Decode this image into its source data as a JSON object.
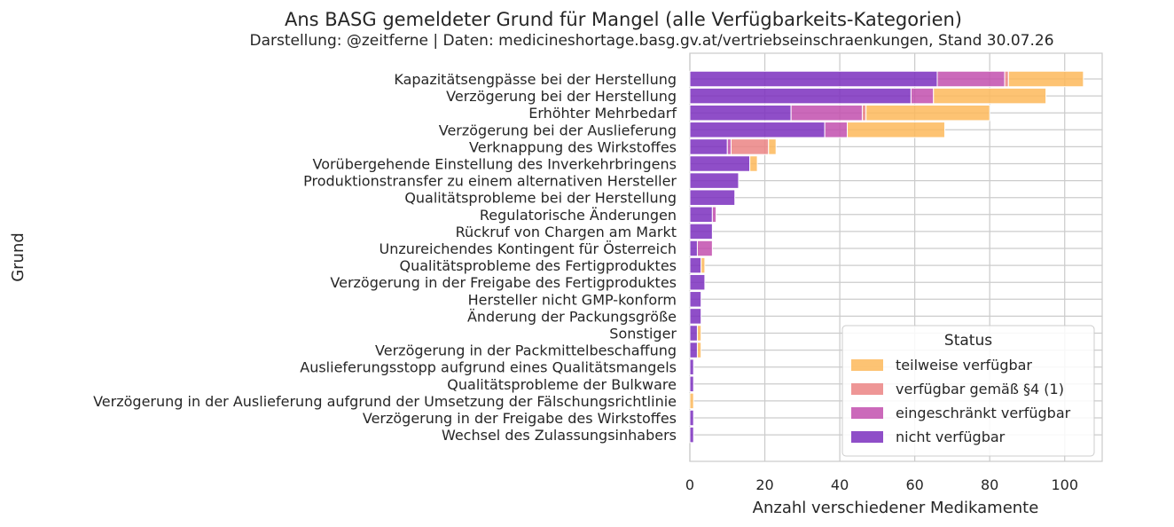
{
  "chart_data": {
    "type": "bar",
    "orientation": "horizontal",
    "stacked": true,
    "title": "Ans BASG gemeldeter Grund für Mangel (alle Verfügbarkeits-Kategorien)",
    "subtitle": "Darstellung: @zeitferne | Daten: medicineshortage.basg.gv.at/vertriebseinschraenkungen, Stand 30.07.26",
    "xlabel": "Anzahl verschiedener Medikamente",
    "ylabel": "Grund",
    "xlim": [
      0,
      110
    ],
    "xticks": [
      0,
      20,
      40,
      60,
      80,
      100
    ],
    "grid": true,
    "legend": {
      "title": "Status",
      "position": "lower-right"
    },
    "categories": [
      "Kapazitätsengpässe bei der Herstellung",
      "Verzögerung bei der Herstellung",
      "Erhöhter Mehrbedarf",
      "Verzögerung bei der Auslieferung",
      "Verknappung des Wirkstoffes",
      "Vorübergehende Einstellung des Inverkehrbringens",
      "Produktionstransfer zu einem alternativen Hersteller",
      "Qualitätsprobleme bei der Herstellung",
      "Regulatorische Änderungen",
      "Rückruf von Chargen am Markt",
      "Unzureichendes Kontingent für Österreich",
      "Qualitätsprobleme des Fertigproduktes",
      "Verzögerung in der Freigabe des Fertigproduktes",
      "Hersteller nicht GMP-konform",
      "Änderung der Packungsgröße",
      "Sonstiger",
      "Verzögerung in der Packmittelbeschaffung",
      "Auslieferungsstopp aufgrund eines Qualitätsmangels",
      "Qualitätsprobleme der Bulkware",
      "Verzögerung in der Auslieferung aufgrund der Umsetzung der Fälschungsrichtlinie",
      "Verzögerung in der Freigabe des Wirkstoffes",
      "Wechsel des Zulassungsinhabers"
    ],
    "series": [
      {
        "name": "nicht verfügbar",
        "color": "#7b2fbe",
        "values": [
          66,
          59,
          27,
          36,
          10,
          16,
          13,
          12,
          6,
          6,
          2,
          3,
          4,
          3,
          3,
          2,
          2,
          1,
          1,
          0,
          1,
          1
        ]
      },
      {
        "name": "eingeschränkt verfügbar",
        "color": "#c24fae",
        "values": [
          18,
          6,
          19,
          6,
          1,
          0,
          0,
          0,
          1,
          0,
          4,
          0,
          0,
          0,
          0,
          0,
          0,
          0,
          0,
          0,
          0,
          0
        ]
      },
      {
        "name": "verfügbar gemäß §4 (1)",
        "color": "#eb8484",
        "values": [
          1,
          0,
          1,
          0,
          10,
          0,
          0,
          0,
          0,
          0,
          0,
          0,
          0,
          0,
          0,
          0,
          0,
          0,
          0,
          0,
          0,
          0
        ]
      },
      {
        "name": "teilweise verfügbar",
        "color": "#fdb85b",
        "values": [
          20,
          30,
          33,
          26,
          2,
          2,
          0,
          0,
          0,
          0,
          0,
          1,
          0,
          0,
          0,
          1,
          1,
          0,
          0,
          1,
          0,
          0
        ]
      }
    ],
    "legend_order": [
      "teilweise verfügbar",
      "verfügbar gemäß §4 (1)",
      "eingeschränkt verfügbar",
      "nicht verfügbar"
    ]
  }
}
